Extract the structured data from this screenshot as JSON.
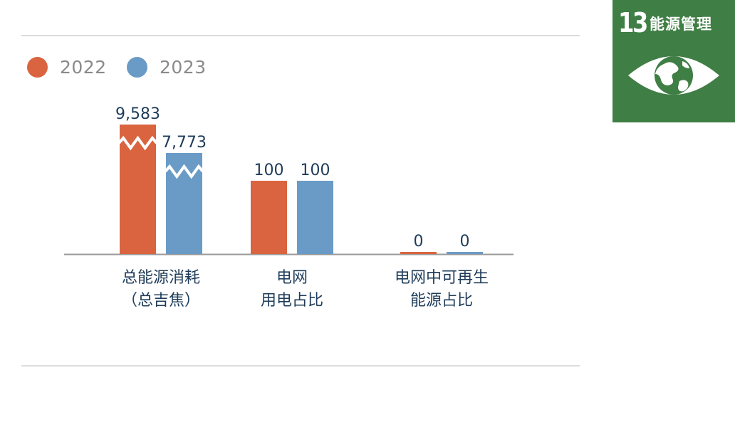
{
  "legend": [
    {
      "label": "2022",
      "color": "#d9643f"
    },
    {
      "label": "2023",
      "color": "#6a9bc6"
    }
  ],
  "chart_data": {
    "type": "bar",
    "categories": [
      "总能源消耗\n（总吉焦）",
      "电网\n用电占比",
      "电网中可再生\n能源占比"
    ],
    "series": [
      {
        "name": "2022",
        "color": "#d9643f",
        "values": [
          9583,
          100,
          0
        ],
        "labels": [
          "9,583",
          "100",
          "0"
        ]
      },
      {
        "name": "2023",
        "color": "#6a9bc6",
        "values": [
          7773,
          100,
          0
        ],
        "labels": [
          "7,773",
          "100",
          "0"
        ]
      }
    ],
    "broken_axis_bars": [
      "总能源消耗\n（总吉焦）"
    ],
    "grid": false,
    "legend_position": "top-left",
    "title": "",
    "xlabel": "",
    "ylabel": ""
  },
  "badge": {
    "number": "13",
    "title": "能源管理",
    "icon": "eye-globe-icon",
    "color": "#3f7e44"
  }
}
